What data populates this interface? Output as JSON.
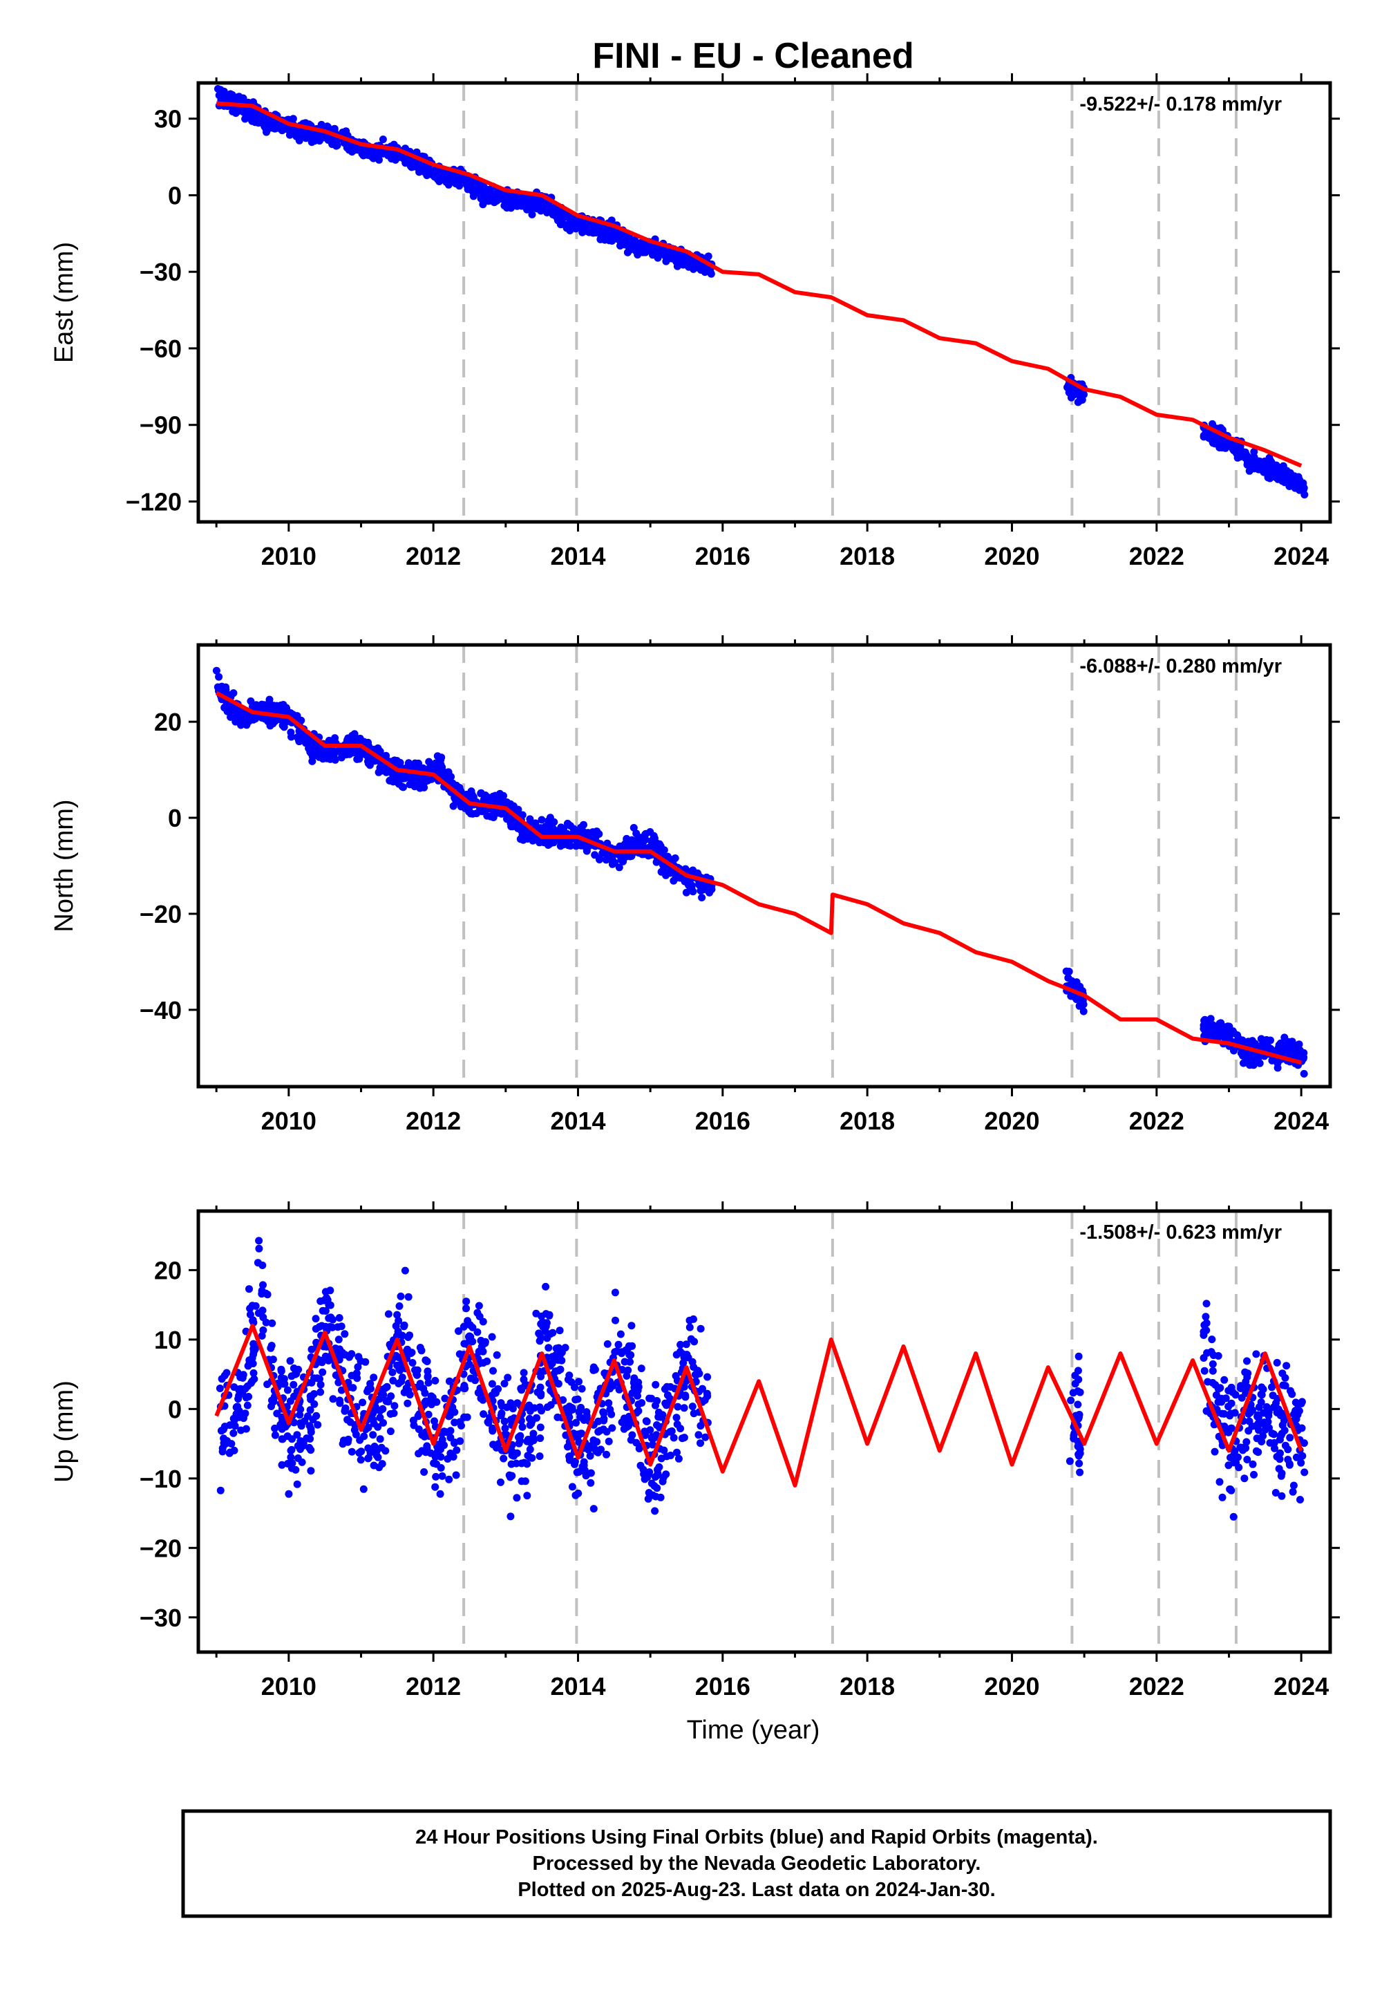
{
  "title": "FINI  - EU - Cleaned",
  "xlabel": "Time (year)",
  "footer": [
    "24 Hour Positions Using Final Orbits (blue) and Rapid Orbits (magenta).",
    "Processed by the Nevada Geodetic Laboratory.",
    "Plotted on 2025-Aug-23. Last data on 2024-Jan-30."
  ],
  "colors": {
    "data": "#0000ff",
    "model": "#ff0000",
    "events": "#c0c0c0"
  },
  "chart_data": [
    {
      "type": "scatter",
      "ylabel": "East (mm)",
      "rate_label": "-9.522+/- 0.178 mm/yr",
      "xlim": [
        2008.75,
        2024.4
      ],
      "ylim": [
        -128,
        44
      ],
      "xticks": [
        "2010",
        "2012",
        "2014",
        "2016",
        "2018",
        "2020",
        "2022",
        "2024"
      ],
      "yticks": [
        "30",
        "0",
        "-30",
        "-60",
        "-90",
        "-120"
      ],
      "event_lines": [
        2012.42,
        2013.98,
        2017.52,
        2020.83,
        2022.03,
        2023.1
      ],
      "series": [
        {
          "x": [
            2009.0,
            2009.2,
            2009.4,
            2009.6,
            2009.8,
            2010.0,
            2010.3,
            2010.6,
            2010.9,
            2011.2,
            2011.5,
            2011.8,
            2012.1,
            2012.4,
            2012.7,
            2013.0,
            2013.3,
            2013.6,
            2013.9,
            2014.2,
            2014.5,
            2014.8,
            2015.1,
            2015.4,
            2015.7,
            2015.85,
            2020.75,
            2020.9,
            2021.0,
            2022.65,
            2022.9,
            2023.1,
            2023.3,
            2023.95,
            2024.05
          ],
          "y": [
            38,
            37,
            34,
            31,
            28,
            27,
            25,
            24,
            19,
            17,
            17,
            13,
            8,
            7,
            1,
            -1,
            -3,
            -4,
            -11,
            -12,
            -15,
            -20,
            -21,
            -24,
            -27,
            -29,
            -74,
            -77,
            -78,
            -92,
            -96,
            -99,
            -104,
            -112,
            -114
          ]
        },
        {
          "name": "model",
          "x": [
            2009.0,
            2009.5,
            2010.0,
            2010.5,
            2011.0,
            2011.5,
            2012.0,
            2012.5,
            2013.0,
            2013.5,
            2014.0,
            2014.5,
            2015.0,
            2015.5,
            2016.0,
            2016.5,
            2017.0,
            2017.5,
            2018.0,
            2018.5,
            2019.0,
            2019.5,
            2020.0,
            2020.5,
            2021.0,
            2021.5,
            2022.0,
            2022.5,
            2023.0,
            2023.5,
            2024.0
          ],
          "y": [
            36,
            35,
            28,
            25,
            20,
            18,
            12,
            8,
            2,
            0,
            -8,
            -12,
            -18,
            -22,
            -30,
            -31,
            -38,
            -40,
            -47,
            -49,
            -56,
            -58,
            -65,
            -68,
            -76,
            -79,
            -86,
            -88,
            -95,
            -100,
            -106
          ]
        }
      ]
    },
    {
      "type": "scatter",
      "ylabel": "North (mm)",
      "rate_label": "-6.088+/- 0.280 mm/yr",
      "xlim": [
        2008.75,
        2024.4
      ],
      "ylim": [
        -56,
        36
      ],
      "xticks": [
        "2010",
        "2012",
        "2014",
        "2016",
        "2018",
        "2020",
        "2022",
        "2024"
      ],
      "yticks": [
        "20",
        "0",
        "-20",
        "-40"
      ],
      "event_lines": [
        2012.42,
        2013.98,
        2017.52,
        2020.83,
        2022.03,
        2023.1
      ],
      "series": [
        {
          "x": [
            2009.0,
            2009.2,
            2009.4,
            2009.6,
            2009.8,
            2010.0,
            2010.3,
            2010.6,
            2010.9,
            2011.2,
            2011.5,
            2011.8,
            2012.1,
            2012.4,
            2012.7,
            2013.0,
            2013.3,
            2013.6,
            2013.9,
            2014.2,
            2014.5,
            2014.8,
            2015.1,
            2015.4,
            2015.7,
            2015.85,
            2020.75,
            2020.9,
            2021.0,
            2022.65,
            2022.9,
            2023.1,
            2023.3,
            2023.95,
            2024.05
          ],
          "y": [
            28,
            23,
            21,
            22,
            22,
            21,
            15,
            14,
            15,
            13,
            9,
            9,
            10,
            3,
            3,
            2,
            -3,
            -3,
            -4,
            -5,
            -8,
            -5,
            -7,
            -12,
            -14,
            -14,
            -34,
            -36,
            -38,
            -44,
            -45,
            -47,
            -49,
            -49,
            -50
          ]
        },
        {
          "name": "model",
          "x": [
            2009.0,
            2009.5,
            2010.0,
            2010.5,
            2011.0,
            2011.5,
            2012.0,
            2012.5,
            2013.0,
            2013.5,
            2014.0,
            2014.5,
            2015.0,
            2015.5,
            2016.0,
            2016.5,
            2017.0,
            2017.5,
            2017.52,
            2018.0,
            2018.5,
            2019.0,
            2019.5,
            2020.0,
            2020.5,
            2021.0,
            2021.5,
            2022.0,
            2022.5,
            2023.0,
            2023.5,
            2024.0
          ],
          "y": [
            26,
            22,
            21,
            15,
            15,
            10,
            9,
            3,
            2,
            -4,
            -4,
            -7,
            -7,
            -12,
            -14,
            -18,
            -20,
            -24,
            -16,
            -18,
            -22,
            -24,
            -28,
            -30,
            -34,
            -37,
            -42,
            -42,
            -46,
            -47,
            -49,
            -51
          ]
        }
      ]
    },
    {
      "type": "scatter",
      "ylabel": "Up (mm)",
      "rate_label": "-1.508+/- 0.623 mm/yr",
      "xlim": [
        2008.75,
        2024.4
      ],
      "ylim": [
        -35,
        28.5
      ],
      "xticks": [
        "2010",
        "2012",
        "2014",
        "2016",
        "2018",
        "2020",
        "2022",
        "2024"
      ],
      "yticks": [
        "20",
        "10",
        "0",
        "-10",
        "-20",
        "-30"
      ],
      "event_lines": [
        2012.42,
        2013.98,
        2017.52,
        2020.83,
        2022.03,
        2023.1
      ],
      "series": [
        {
          "x": [
            2009.05,
            2009.3,
            2009.55,
            2009.6,
            2009.8,
            2010.05,
            2010.3,
            2010.55,
            2010.8,
            2011.05,
            2011.3,
            2011.55,
            2011.8,
            2012.05,
            2012.3,
            2012.55,
            2012.8,
            2013.05,
            2013.3,
            2013.55,
            2013.8,
            2014.05,
            2014.3,
            2014.55,
            2014.8,
            2015.05,
            2015.3,
            2015.55,
            2015.8,
            2020.8,
            2020.95,
            2022.65,
            2022.9,
            2023.1,
            2023.3,
            2023.95,
            2024.05
          ],
          "y": [
            0,
            -2,
            12,
            20,
            3,
            -3,
            0,
            12,
            2,
            -3,
            -1,
            10,
            0,
            -5,
            -2,
            10,
            1,
            -6,
            -3,
            9,
            1,
            -7,
            -2,
            8,
            0,
            -8,
            -3,
            7,
            -1,
            0,
            -5,
            8,
            -2,
            -6,
            2,
            -5,
            -6
          ]
        },
        {
          "name": "model",
          "x": [
            2009.0,
            2009.5,
            2010.0,
            2010.5,
            2011.0,
            2011.5,
            2012.0,
            2012.5,
            2013.0,
            2013.5,
            2014.0,
            2014.5,
            2015.0,
            2015.5,
            2016.0,
            2016.5,
            2017.0,
            2017.5,
            2018.0,
            2018.5,
            2019.0,
            2019.5,
            2020.0,
            2020.5,
            2021.0,
            2021.5,
            2022.0,
            2022.5,
            2023.0,
            2023.5,
            2024.0
          ],
          "y": [
            -1,
            12,
            -2,
            11,
            -3,
            10,
            -5,
            9,
            -6,
            8,
            -7,
            7,
            -8,
            6,
            -9,
            4,
            -11,
            10,
            -5,
            9,
            -6,
            8,
            -8,
            6,
            -5,
            8,
            -5,
            7,
            -6,
            8,
            -6
          ]
        }
      ]
    }
  ]
}
